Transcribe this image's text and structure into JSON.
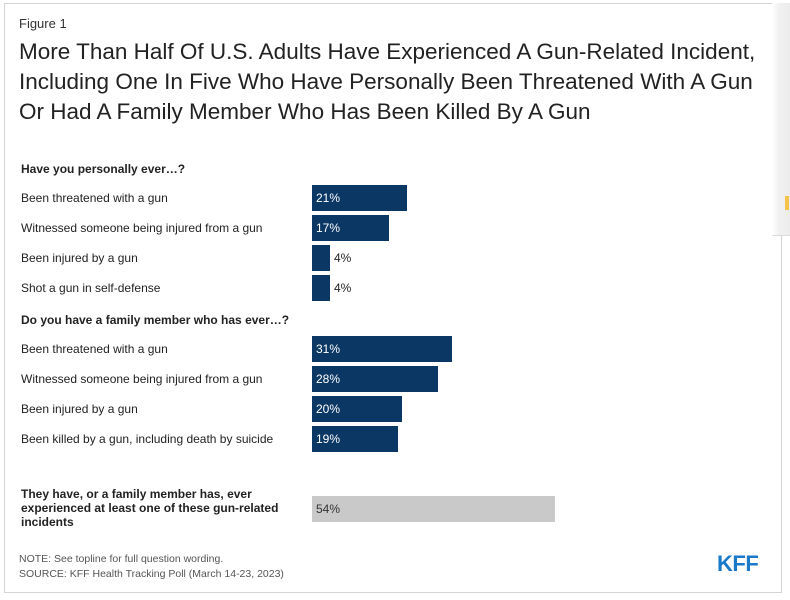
{
  "figure_label": "Figure 1",
  "title": "More Than Half Of U.S. Adults Have Experienced A Gun-Related Incident, Including One In Five Who Have Personally Been Threatened With A Gun Or Had A Family Member Who Has Been Killed By A Gun",
  "colors": {
    "primary_bar": "#0b3764",
    "total_bar": "#c9c9c9",
    "logo": "#1a7ac9"
  },
  "chart_data": {
    "type": "bar",
    "orientation": "horizontal",
    "unit": "%",
    "groups": [
      {
        "heading": "Have you personally ever…?",
        "items": [
          {
            "label": "Been threatened with a gun",
            "value": 21,
            "text": "21%"
          },
          {
            "label": "Witnessed someone being injured from a gun",
            "value": 17,
            "text": "17%"
          },
          {
            "label": "Been injured by a gun",
            "value": 4,
            "text": "4%"
          },
          {
            "label": "Shot a gun in self-defense",
            "value": 4,
            "text": "4%"
          }
        ]
      },
      {
        "heading": "Do you have a family member who has ever…?",
        "items": [
          {
            "label": "Been threatened with a gun",
            "value": 31,
            "text": "31%"
          },
          {
            "label": "Witnessed someone being injured from a gun",
            "value": 28,
            "text": "28%"
          },
          {
            "label": "Been injured by a gun",
            "value": 20,
            "text": "20%"
          },
          {
            "label": "Been killed by a gun, including death by suicide",
            "value": 19,
            "text": "19%"
          }
        ]
      }
    ],
    "total": {
      "label": "They have, or a family member has, ever experienced at least one of these gun-related incidents",
      "value": 54,
      "text": "54%"
    }
  },
  "note": "NOTE: See topline for full question wording.",
  "source": "SOURCE: KFF Health Tracking Poll (March 14-23, 2023)",
  "logo_text": "KFF"
}
